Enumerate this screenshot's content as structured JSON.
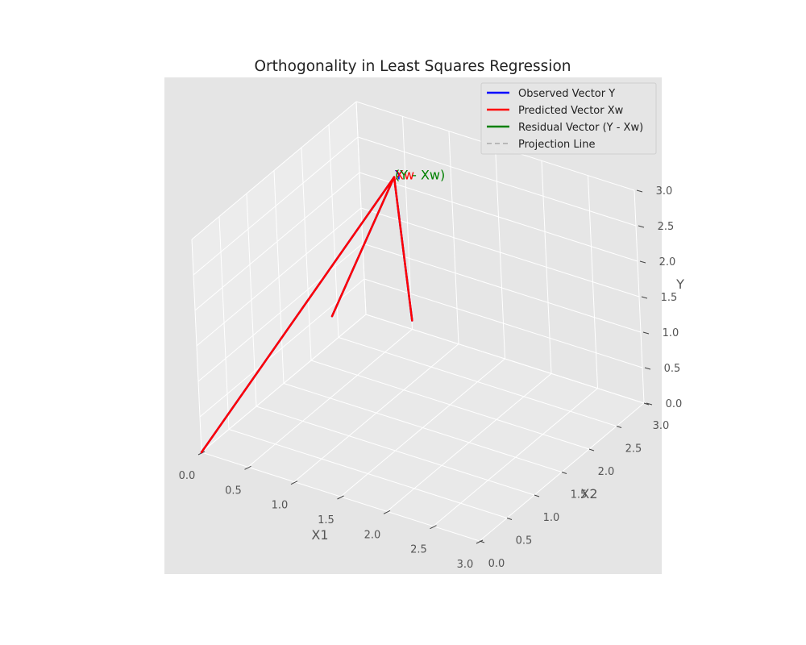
{
  "chart_data": {
    "type": "line",
    "title": "Orthogonality in Least Squares Regression",
    "axes": {
      "x": {
        "label": "X1",
        "range": [
          0,
          3
        ],
        "ticks": [
          "0.0",
          "0.5",
          "1.0",
          "1.5",
          "2.0",
          "2.5",
          "3.0"
        ]
      },
      "y": {
        "label": "X2",
        "range": [
          0,
          3
        ],
        "ticks": [
          "0.0",
          "0.5",
          "1.0",
          "1.5",
          "2.0",
          "2.5",
          "3.0"
        ]
      },
      "z": {
        "label": "Y",
        "range": [
          0,
          3
        ],
        "ticks": [
          "0.0",
          "0.5",
          "1.0",
          "1.5",
          "2.0",
          "2.5",
          "3.0"
        ]
      }
    },
    "series": [
      {
        "name": "Observed Vector Y",
        "color": "#0000ff",
        "style": "solid",
        "segments": [
          [
            [
              0,
              0,
              0
            ],
            [
              1,
              2,
              3
            ]
          ],
          [
            [
              1,
              2,
              3
            ],
            [
              0.667,
              1.333,
              1.333
            ]
          ],
          [
            [
              1,
              2,
              3
            ],
            [
              1.333,
              1.667,
              1.333
            ]
          ]
        ]
      },
      {
        "name": "Predicted Vector Xw",
        "color": "#ff0000",
        "style": "solid",
        "segments": [
          [
            [
              0,
              0,
              0
            ],
            [
              1,
              2,
              3
            ]
          ],
          [
            [
              1,
              2,
              3
            ],
            [
              0.667,
              1.333,
              1.333
            ]
          ],
          [
            [
              1,
              2,
              3
            ],
            [
              1.333,
              1.667,
              1.333
            ]
          ]
        ]
      },
      {
        "name": "Residual Vector (Y - Xw)",
        "color": "#008000",
        "style": "solid",
        "segments": []
      },
      {
        "name": "Projection Line",
        "color": "#aaaaaa",
        "style": "dashed",
        "segments": []
      }
    ],
    "annotations": [
      {
        "text": "Y",
        "color": "#0000ff",
        "at": [
          1,
          2,
          3
        ]
      },
      {
        "text": "Xw",
        "color": "#ff0000",
        "at": [
          1,
          2,
          3
        ]
      },
      {
        "text": "(Y - Xw)",
        "color": "#008000",
        "at": [
          1,
          2,
          3
        ]
      }
    ],
    "legend_position": "top-right",
    "grid": true,
    "style": "ggplot"
  }
}
